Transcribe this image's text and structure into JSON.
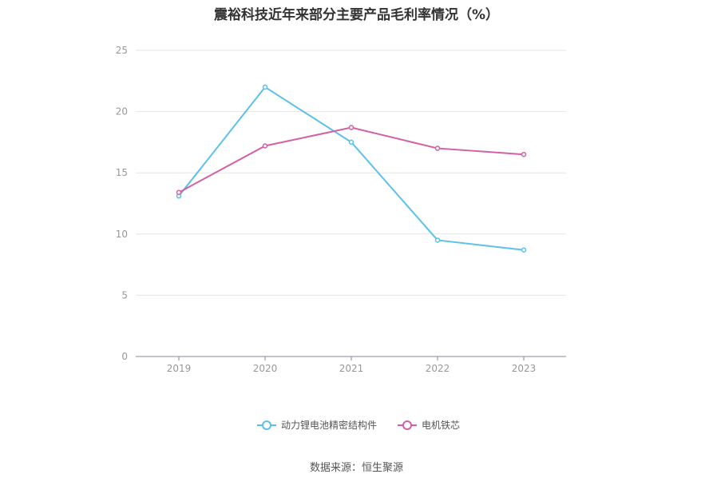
{
  "title": "震裕科技近年来部分主要产品毛利率情况（%）",
  "source": "数据来源：恒生聚源",
  "colors": {
    "series_1": "#5bc0eb",
    "series_2": "#d45fa6",
    "grid": "#e6e6e6",
    "axis": "#8a8a9a",
    "tick_text": "#999999"
  },
  "chart_data": {
    "type": "line",
    "categories": [
      "2019",
      "2020",
      "2021",
      "2022",
      "2023"
    ],
    "ylim": [
      0,
      25
    ],
    "yticks": [
      0,
      5,
      10,
      15,
      20,
      25
    ],
    "grid": true,
    "legend_position": "bottom",
    "series": [
      {
        "name": "动力锂电池精密结构件",
        "values": [
          13.1,
          22.0,
          17.5,
          9.5,
          8.7
        ]
      },
      {
        "name": "电机铁芯",
        "values": [
          13.4,
          17.2,
          18.7,
          17.0,
          16.5
        ]
      }
    ]
  }
}
